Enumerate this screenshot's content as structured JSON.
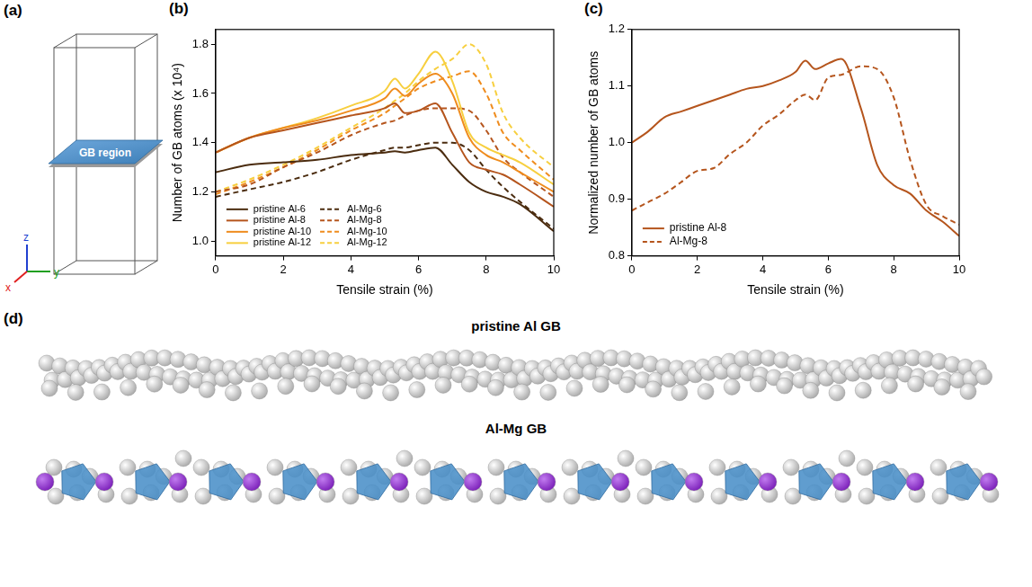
{
  "diagram_a": {
    "panel": "(a)",
    "region_label": "GB region",
    "axis_labels": [
      "x",
      "y",
      "z"
    ]
  },
  "chart_data": [
    {
      "panel": "(b)",
      "type": "line",
      "x_label": "Tensile strain (%)",
      "y_label": "Number of GB atoms (x 10⁴)",
      "x": [
        0,
        1,
        2,
        3,
        4,
        5,
        5.3,
        5.6,
        6,
        6.5,
        7,
        7.5,
        8,
        8.5,
        9,
        10
      ],
      "xlim": [
        0,
        10
      ],
      "xticks": [
        0,
        2,
        4,
        6,
        8,
        10
      ],
      "ylim": [
        0.94,
        1.86
      ],
      "yticks": [
        {
          "value": 1,
          "label": "1.0"
        },
        1.2,
        1.4,
        1.6,
        1.8
      ],
      "grid": false,
      "legend": "lower left",
      "series": [
        {
          "name": "pristine Al-6",
          "color": "#4b2c0f",
          "line_style": "solid",
          "values": [
            1.28,
            1.31,
            1.32,
            1.33,
            1.35,
            1.36,
            1.365,
            1.36,
            1.37,
            1.38,
            1.31,
            1.24,
            1.2,
            1.18,
            1.15,
            1.04
          ]
        },
        {
          "name": "pristine Al-8",
          "color": "#b5551d",
          "line_style": "solid",
          "values": [
            1.36,
            1.42,
            1.45,
            1.48,
            1.51,
            1.54,
            1.56,
            1.52,
            1.53,
            1.56,
            1.44,
            1.32,
            1.29,
            1.27,
            1.23,
            1.14
          ]
        },
        {
          "name": "pristine Al-10",
          "color": "#ef8c1e",
          "line_style": "solid",
          "values": [
            1.36,
            1.42,
            1.46,
            1.49,
            1.53,
            1.58,
            1.62,
            1.59,
            1.64,
            1.68,
            1.6,
            1.42,
            1.35,
            1.32,
            1.28,
            1.2
          ]
        },
        {
          "name": "pristine Al-12",
          "color": "#f7cf3f",
          "line_style": "solid",
          "values": [
            1.36,
            1.42,
            1.46,
            1.5,
            1.55,
            1.61,
            1.66,
            1.62,
            1.68,
            1.77,
            1.65,
            1.44,
            1.38,
            1.35,
            1.32,
            1.23
          ]
        },
        {
          "name": "Al-Mg-6",
          "color": "#4b2c0f",
          "line_style": "dashed",
          "values": [
            1.18,
            1.21,
            1.24,
            1.28,
            1.33,
            1.37,
            1.38,
            1.38,
            1.39,
            1.4,
            1.4,
            1.37,
            1.29,
            1.22,
            1.16,
            1.05
          ]
        },
        {
          "name": "Al-Mg-8",
          "color": "#b5551d",
          "line_style": "dashed",
          "values": [
            1.2,
            1.23,
            1.3,
            1.36,
            1.43,
            1.48,
            1.49,
            1.51,
            1.53,
            1.54,
            1.54,
            1.53,
            1.45,
            1.34,
            1.28,
            1.18
          ]
        },
        {
          "name": "Al-Mg-10",
          "color": "#ef8c1e",
          "line_style": "dashed",
          "values": [
            1.19,
            1.24,
            1.3,
            1.37,
            1.45,
            1.52,
            1.55,
            1.58,
            1.62,
            1.65,
            1.67,
            1.69,
            1.6,
            1.44,
            1.37,
            1.25
          ]
        },
        {
          "name": "Al-Mg-12",
          "color": "#f7cf3f",
          "line_style": "dashed",
          "values": [
            1.2,
            1.25,
            1.31,
            1.38,
            1.46,
            1.54,
            1.57,
            1.6,
            1.65,
            1.7,
            1.74,
            1.8,
            1.72,
            1.52,
            1.42,
            1.3
          ]
        }
      ]
    },
    {
      "panel": "(c)",
      "type": "line",
      "x_label": "Tensile strain (%)",
      "y_label": "Normalized number of GB atoms",
      "x": [
        0,
        0.5,
        1,
        1.5,
        2,
        2.5,
        3,
        3.5,
        4,
        4.5,
        5,
        5.3,
        5.6,
        6,
        6.4,
        7,
        7.5,
        8,
        8.5,
        9,
        9.5,
        10
      ],
      "xlim": [
        0,
        10
      ],
      "xticks": [
        0,
        2,
        4,
        6,
        8,
        10
      ],
      "ylim": [
        0.8,
        1.2
      ],
      "yticks": [
        0.8,
        0.9,
        {
          "value": 1,
          "label": "1.0"
        },
        1.1,
        1.2
      ],
      "grid": false,
      "legend": "lower left",
      "series": [
        {
          "name": "pristine Al-8",
          "color": "#b5551d",
          "line_style": "solid",
          "values": [
            1.0,
            1.02,
            1.045,
            1.055,
            1.065,
            1.075,
            1.085,
            1.095,
            1.1,
            1.11,
            1.125,
            1.145,
            1.13,
            1.14,
            1.148,
            1.06,
            0.96,
            0.925,
            0.91,
            0.88,
            0.86,
            0.835
          ]
        },
        {
          "name": "Al-Mg-8",
          "color": "#b5551d",
          "line_style": "dashed",
          "values": [
            0.88,
            0.895,
            0.91,
            0.93,
            0.95,
            0.955,
            0.98,
            1.0,
            1.03,
            1.05,
            1.075,
            1.085,
            1.075,
            1.115,
            1.12,
            1.135,
            1.13,
            1.08,
            0.97,
            0.89,
            0.87,
            0.855
          ]
        }
      ]
    }
  ],
  "structures_d": {
    "panel": "(d)",
    "titles": [
      "pristine Al GB",
      "Al-Mg GB"
    ]
  }
}
